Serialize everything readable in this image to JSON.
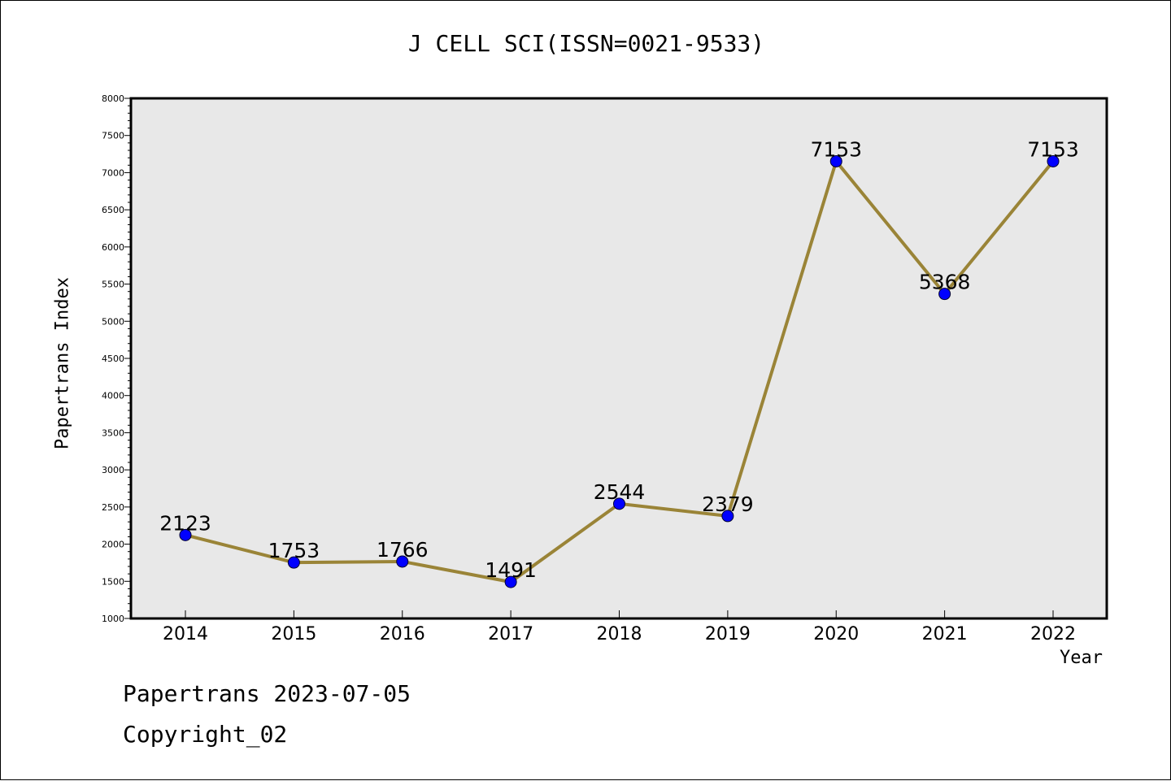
{
  "chart_data": {
    "type": "line",
    "title": "J CELL SCI(ISSN=0021-9533)",
    "xlabel": "Year",
    "ylabel": "Papertrans Index",
    "categories": [
      "2014",
      "2015",
      "2016",
      "2017",
      "2018",
      "2019",
      "2020",
      "2021",
      "2022"
    ],
    "series": [
      {
        "values": [
          2123,
          1753,
          1766,
          1491,
          2544,
          2379,
          7153,
          5368,
          7153
        ]
      }
    ],
    "data_labels": [
      "2123",
      "1753",
      "1766",
      "1491",
      "2544",
      "2379",
      "7153",
      "5368",
      "7153"
    ],
    "ylim": [
      1000,
      8000
    ],
    "yticks": [
      1000,
      1500,
      2000,
      2500,
      3000,
      3500,
      4000,
      4500,
      5000,
      5500,
      6000,
      6500,
      7000,
      7500,
      8000
    ],
    "grid": false,
    "colors": {
      "line": "#9a8437",
      "marker": "#0000ff",
      "plot_bg": "#e8e8e8"
    }
  },
  "footer": {
    "line1": "Papertrans 2023-07-05",
    "line2": "Copyright_02"
  }
}
